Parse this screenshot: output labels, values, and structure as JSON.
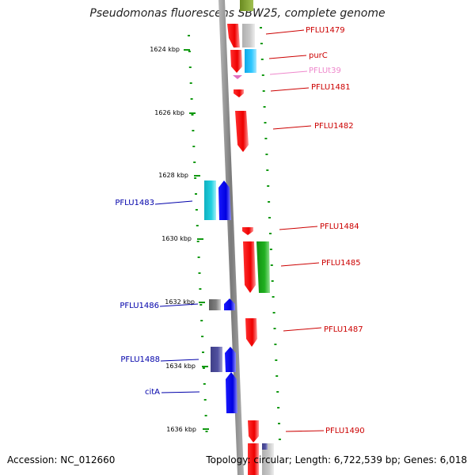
{
  "title": "Pseudomonas fluorescens SBW25, complete genome",
  "accession": "Accession: NC_012660",
  "topology": "Topology: circular; Length: 6,722,539 bp; Genes: 6,018",
  "scale_labels": [
    "1624 kbp",
    "1626 kbp",
    "1628 kbp",
    "1630 kbp",
    "1632 kbp",
    "1634 kbp",
    "1636 kbp"
  ],
  "colors": {
    "forward_gene": "#ee0000",
    "reverse_gene": "#1010ee",
    "trna": "#e070c0",
    "tick": "#119911",
    "backbone": "#8c8c8c",
    "label_red": "#cc0000",
    "label_blue": "#0000aa",
    "label_pink": "#ee88cc"
  },
  "genes": [
    {
      "name": "PFLU1479",
      "strand": "forward"
    },
    {
      "name": "purC",
      "strand": "forward"
    },
    {
      "name": "PFLUt39",
      "strand": "forward",
      "type": "tRNA"
    },
    {
      "name": "PFLU1481",
      "strand": "forward"
    },
    {
      "name": "PFLU1482",
      "strand": "forward"
    },
    {
      "name": "PFLU1483",
      "strand": "reverse"
    },
    {
      "name": "PFLU1484",
      "strand": "forward"
    },
    {
      "name": "PFLU1485",
      "strand": "forward"
    },
    {
      "name": "PFLU1486",
      "strand": "reverse"
    },
    {
      "name": "PFLU1487",
      "strand": "forward"
    },
    {
      "name": "PFLU1488",
      "strand": "reverse"
    },
    {
      "name": "citA",
      "strand": "reverse"
    },
    {
      "name": "PFLU1490",
      "strand": "forward"
    }
  ]
}
